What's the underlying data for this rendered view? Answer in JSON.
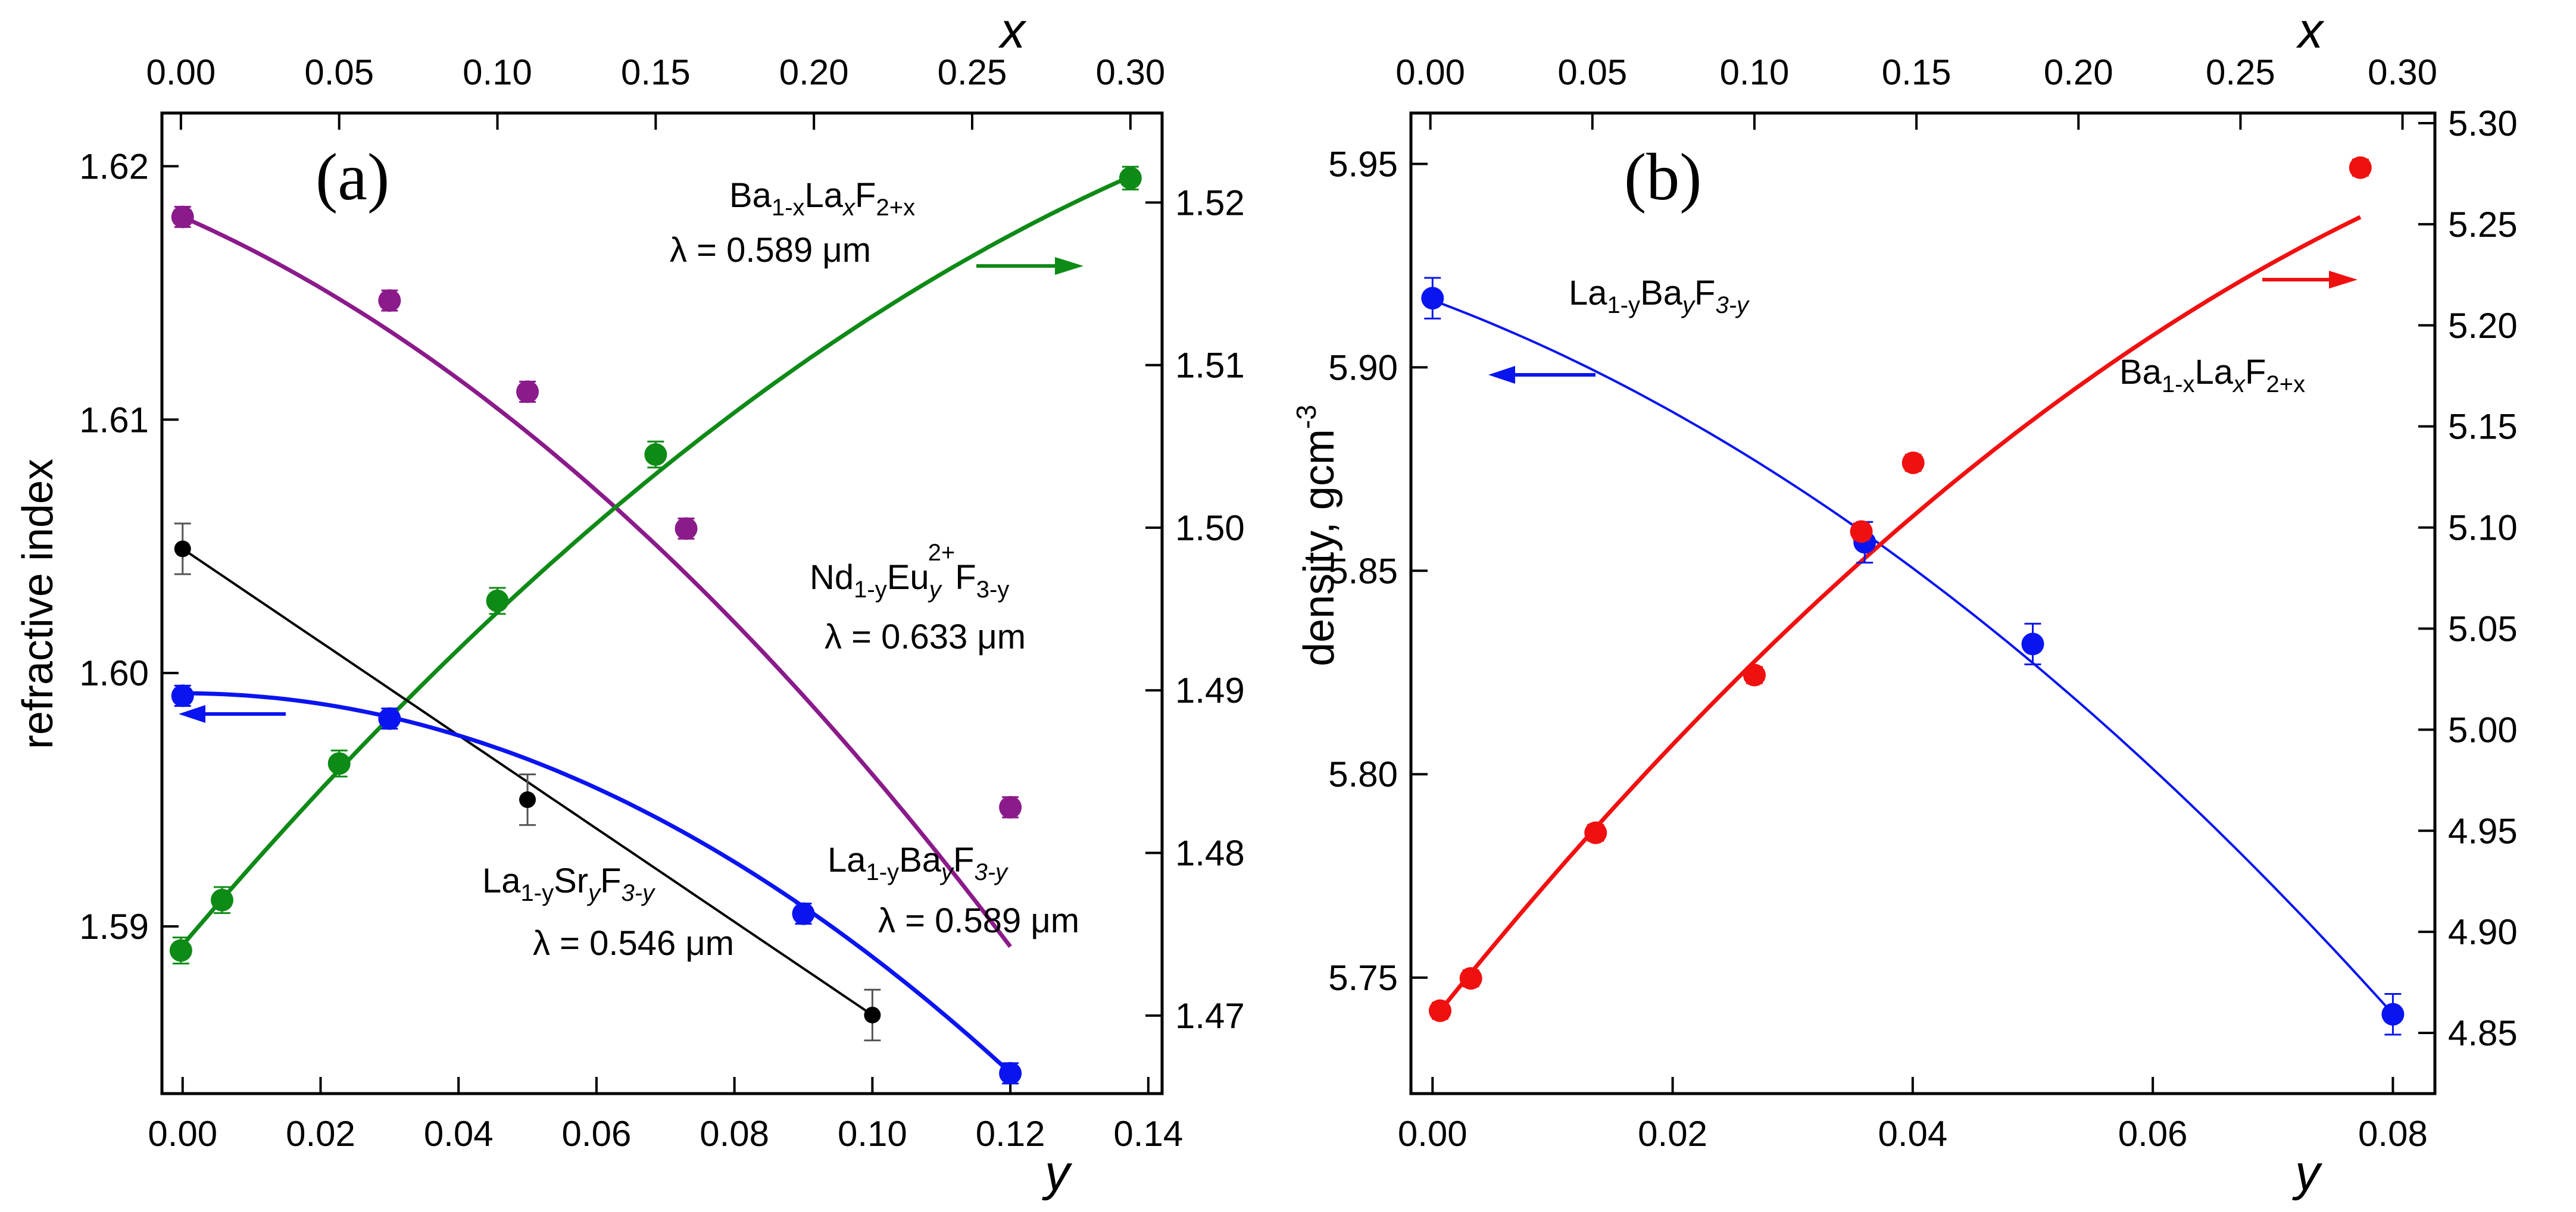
{
  "colors": {
    "purple": "#8B1A8B",
    "green": "#0E8A16",
    "blue": "#0A14F0",
    "black": "#000000",
    "red": "#F01010"
  },
  "chart_data": [
    {
      "type": "scatter",
      "panel_label": "(a)",
      "xlabel_bottom": "y",
      "xlabel_top": "x",
      "ylabel_left": "refractive index",
      "x_bottom_range": [
        -0.003,
        0.142
      ],
      "x_bottom_ticks": [
        "0.00",
        "0.02",
        "0.04",
        "0.06",
        "0.08",
        "0.10",
        "0.12",
        "0.14"
      ],
      "x_top_range": [
        -0.006,
        0.31
      ],
      "x_top_ticks": [
        "0.00",
        "0.05",
        "0.10",
        "0.15",
        "0.20",
        "0.25",
        "0.30"
      ],
      "y_left_range": [
        1.5834,
        1.6221
      ],
      "y_left_ticks": [
        "1.59",
        "1.60",
        "1.61",
        "1.62"
      ],
      "y_right_range": [
        1.4652,
        1.5255
      ],
      "y_right_ticks": [
        "1.47",
        "1.48",
        "1.49",
        "1.50",
        "1.51",
        "1.52"
      ],
      "series": [
        {
          "name": "Nd1-yEu2+yF3-y",
          "color": "#8B1A8B",
          "axis": "bottom-left",
          "wavelength": "λ = 0.633 μm",
          "points": [
            [
              0.0,
              1.618
            ],
            [
              0.03,
              1.6147
            ],
            [
              0.05,
              1.6111
            ],
            [
              0.073,
              1.6057
            ],
            [
              0.12,
              1.5947
            ]
          ],
          "errors": [
            0.0004,
            0.0004,
            0.0004,
            0.0004,
            0.0004
          ],
          "fit": [
            1.618,
            -0.12,
            -1.0
          ]
        },
        {
          "name": "Ba1-xLaxF2+x",
          "color": "#0E8A16",
          "axis": "top-right",
          "wavelength": "λ = 0.589 μm",
          "points": [
            [
              0.0,
              1.474
            ],
            [
              0.013,
              1.4771
            ],
            [
              0.05,
              1.4855
            ],
            [
              0.1,
              1.4955
            ],
            [
              0.15,
              1.5045
            ],
            [
              0.3,
              1.5215
            ]
          ],
          "errors": [
            0.0008,
            0.0008,
            0.0008,
            0.0008,
            0.0008,
            0.0007
          ],
          "fit": [
            1.4742,
            0.23,
            -0.24
          ]
        },
        {
          "name": "La1-ySryF3-y",
          "color": "#000000",
          "axis": "bottom-left",
          "wavelength": "λ = 0.546 μm",
          "points": [
            [
              0.0,
              1.6049
            ],
            [
              0.05,
              1.595
            ],
            [
              0.1,
              1.5865
            ]
          ],
          "errors": [
            0.001,
            0.001,
            0.001
          ],
          "fit": [
            1.6049,
            -0.184,
            0.0
          ]
        },
        {
          "name": "La1-yBayF3-y",
          "color": "#0A14F0",
          "axis": "bottom-left",
          "wavelength": "λ = 0.589 μm",
          "points": [
            [
              0.0,
              1.5991
            ],
            [
              0.03,
              1.5982
            ],
            [
              0.09,
              1.5905
            ],
            [
              0.12,
              1.5842
            ]
          ],
          "errors": [
            0.0004,
            0.0004,
            0.0004,
            0.0004
          ],
          "fit": [
            1.5992,
            0.0,
            -1.04
          ]
        }
      ],
      "annotations": {
        "ba_formula": {
          "main": [
            "Ba",
            "La",
            "F"
          ],
          "subs": [
            "1-x",
            "x",
            "2+x"
          ],
          "italic_subs": [
            false,
            true,
            false
          ]
        },
        "ba_wavelength": "λ = 0.589 μm",
        "nd_formula": {
          "main": [
            "Nd",
            "Eu",
            "F"
          ],
          "subs": [
            "1-y",
            "y",
            "3-y"
          ],
          "sup": "2+"
        },
        "nd_wavelength": "λ = 0.633 μm",
        "sr_formula": {
          "main": [
            "La",
            "Sr",
            "F"
          ],
          "subs": [
            "1-y",
            "y",
            "3-y"
          ]
        },
        "sr_wavelength": "λ = 0.546 μm",
        "bay_formula": {
          "main": [
            "La",
            "Ba",
            "F"
          ],
          "subs": [
            "1-y",
            "y",
            "3-y"
          ]
        },
        "bay_wavelength": "λ = 0.589 μm"
      }
    },
    {
      "type": "scatter",
      "panel_label": "(b)",
      "xlabel_bottom": "y",
      "xlabel_top": "x",
      "ylabel_left": "density, gcm-3",
      "x_bottom_range": [
        -0.0018,
        0.0835
      ],
      "x_bottom_ticks": [
        "0.00",
        "0.02",
        "0.04",
        "0.06",
        "0.08"
      ],
      "x_top_range": [
        -0.006,
        0.31
      ],
      "x_top_ticks": [
        "0.00",
        "0.05",
        "0.10",
        "0.15",
        "0.20",
        "0.25",
        "0.30"
      ],
      "y_left_range": [
        5.7215,
        5.9625
      ],
      "y_left_ticks": [
        "5.75",
        "5.80",
        "5.85",
        "5.90",
        "5.95"
      ],
      "y_right_range": [
        4.82,
        5.305
      ],
      "y_right_ticks": [
        "4.85",
        "4.90",
        "4.95",
        "5.00",
        "5.05",
        "5.10",
        "5.15",
        "5.20",
        "5.25",
        "5.30"
      ],
      "series": [
        {
          "name": "La1-yBayF3-y",
          "color": "#0A14F0",
          "axis": "bottom-left",
          "points": [
            [
              0.0,
              5.917
            ],
            [
              0.036,
              5.857
            ],
            [
              0.05,
              5.832
            ],
            [
              0.08,
              5.741
            ]
          ],
          "errors": [
            0.005,
            0.005,
            0.005,
            0.005
          ],
          "fit": [
            5.9165,
            -1.1,
            -13.66
          ]
        },
        {
          "name": "Ba1-xLaxF2+x",
          "color": "#F01010",
          "axis": "top-right",
          "points": [
            [
              0.003,
              4.861
            ],
            [
              0.0125,
              4.877
            ],
            [
              0.051,
              4.949
            ],
            [
              0.1,
              5.027
            ],
            [
              0.133,
              5.098
            ],
            [
              0.149,
              5.132
            ],
            [
              0.287,
              5.278
            ]
          ],
          "errors": [
            0.004,
            0.004,
            0.004,
            0.004,
            0.004,
            0.004,
            0.004
          ],
          "fit": [
            4.855,
            2.0,
            -2.13
          ]
        }
      ],
      "annotations": {
        "blue_formula": {
          "main": [
            "La",
            "Ba",
            "F"
          ],
          "subs": [
            "1-y",
            "y",
            "3-y"
          ]
        },
        "red_formula": {
          "main": [
            "Ba",
            "La",
            "F"
          ],
          "subs": [
            "1-x",
            "x",
            "2+x"
          ]
        }
      }
    }
  ]
}
